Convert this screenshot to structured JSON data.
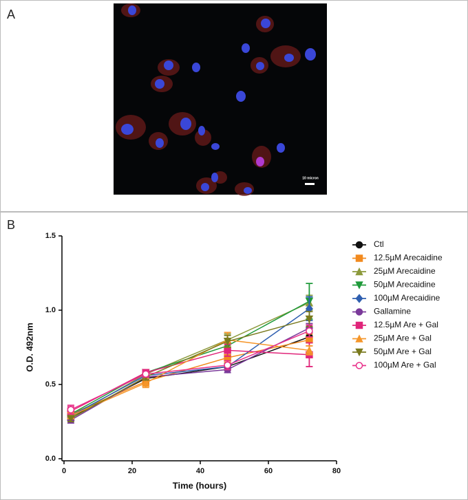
{
  "panel_a": {
    "label": "A",
    "scale_bar": "10 micron"
  },
  "chart_data": {
    "type": "line",
    "panel_label": "B",
    "x_label": "Time (hours)",
    "y_label": "O.D. 492nm",
    "x": [
      2,
      24,
      48,
      72
    ],
    "xlim": [
      0,
      80
    ],
    "xticks": [
      0,
      20,
      40,
      60,
      80
    ],
    "ylim": [
      0,
      1.5
    ],
    "yticks": [
      {
        "value": 0,
        "label": "0.0"
      },
      0.5,
      {
        "value": 1,
        "label": "1.0"
      },
      1.5
    ],
    "legend": "right",
    "series": [
      {
        "name": "Ctl",
        "color": "#111111",
        "marker": "circle",
        "values": [
          0.28,
          0.54,
          0.62,
          0.82
        ],
        "errors": [
          0.02,
          0.02,
          0.02,
          0.03
        ]
      },
      {
        "name": "12.5µM Arecaidine",
        "color": "#f28a1e",
        "marker": "square",
        "values": [
          0.3,
          0.52,
          0.68,
          0.8
        ],
        "errors": [
          0.02,
          0.03,
          0.03,
          0.04
        ]
      },
      {
        "name": "25µM Arecaidine",
        "color": "#8c9a3c",
        "marker": "triangle",
        "values": [
          0.28,
          0.57,
          0.8,
          1.05
        ],
        "errors": [
          0.02,
          0.02,
          0.04,
          0.05
        ]
      },
      {
        "name": "50µM Arecaidine",
        "color": "#1f9a3a",
        "marker": "triangle-down",
        "values": [
          0.3,
          0.58,
          0.76,
          1.06
        ],
        "errors": [
          0.02,
          0.02,
          0.05,
          0.12
        ]
      },
      {
        "name": "100µM Arecaidine",
        "color": "#2f5fb0",
        "marker": "diamond",
        "values": [
          0.29,
          0.56,
          0.62,
          1.01
        ],
        "errors": [
          0.02,
          0.02,
          0.02,
          0.08
        ]
      },
      {
        "name": "Gallamine",
        "color": "#7a3a9a",
        "marker": "circle",
        "values": [
          0.26,
          0.55,
          0.6,
          0.88
        ],
        "errors": [
          0.02,
          0.02,
          0.02,
          0.03
        ]
      },
      {
        "name": "12.5µM Are + Gal",
        "color": "#e0257a",
        "marker": "square",
        "values": [
          0.32,
          0.58,
          0.73,
          0.7
        ],
        "errors": [
          0.03,
          0.02,
          0.04,
          0.08
        ]
      },
      {
        "name": "25µM Are + Gal",
        "color": "#f5962a",
        "marker": "triangle",
        "values": [
          0.29,
          0.51,
          0.8,
          0.73
        ],
        "errors": [
          0.02,
          0.03,
          0.05,
          0.03
        ]
      },
      {
        "name": "50µM Are + Gal",
        "color": "#7a7a1e",
        "marker": "triangle-down",
        "values": [
          0.27,
          0.55,
          0.79,
          0.94
        ],
        "errors": [
          0.02,
          0.02,
          0.04,
          0.05
        ]
      },
      {
        "name": "100µM Are + Gal",
        "color": "#e8308a",
        "marker": "circle-open",
        "values": [
          0.33,
          0.57,
          0.63,
          0.86
        ],
        "errors": [
          0.03,
          0.02,
          0.03,
          0.04
        ]
      }
    ]
  }
}
